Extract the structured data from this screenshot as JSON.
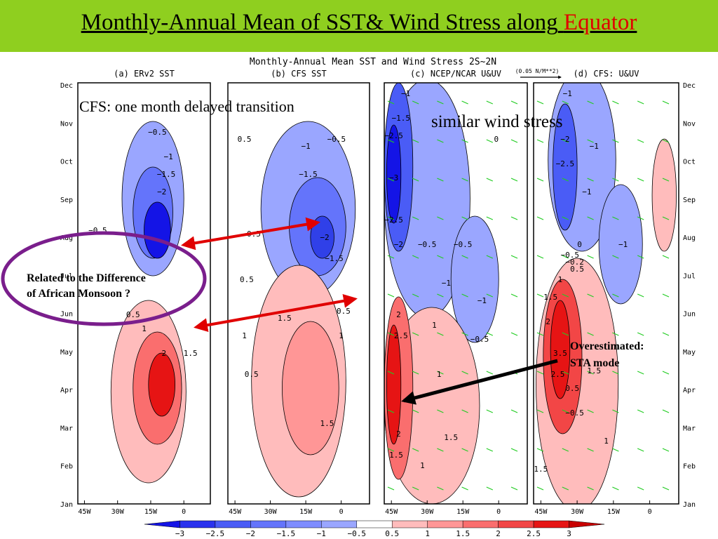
{
  "header": {
    "title_main": "Monthly-Annual Mean of SST& Wind Stress along",
    "title_highlight": "Equator"
  },
  "annotations": {
    "cfs_delay": "CFS: one month delayed transition",
    "similar_wind": "similar wind stress",
    "african_line1": "Related to the Difference",
    "african_line2": "of African Monsoon ?",
    "sta_line1": "Overestimated:",
    "sta_line2": "STA mode"
  },
  "colors": {
    "title_bar": "#8fcf1f",
    "negative_deep": "#1414e6",
    "negative_light": "#9aa6ff",
    "positive_deep": "#e61414",
    "positive_light": "#ffbcbc",
    "arrows_red": "#e00000",
    "arrows_black": "#000000",
    "ellipse": "#7a1e8c",
    "wind_vectors": "#22cc22"
  },
  "chart_data": {
    "type": "heatmap",
    "title": "Monthly-Annual Mean SST and Wind Stress 2S~2N",
    "vector_reference": "(0.05 N/M**2)",
    "y_ticks": [
      "Dec",
      "Nov",
      "Oct",
      "Sep",
      "Aug",
      "Jul",
      "Jun",
      "May",
      "Apr",
      "Mar",
      "Feb",
      "Jan"
    ],
    "x_ticks": [
      "45W",
      "30W",
      "15W",
      "0"
    ],
    "panels": [
      {
        "name": "(a) ERv2 SST",
        "labels": [
          {
            "text": "−0.5",
            "lon": -12,
            "month": 10.6
          },
          {
            "text": "−1",
            "lon": -7,
            "month": 9.9
          },
          {
            "text": "−1.5",
            "lon": -8,
            "month": 9.4
          },
          {
            "text": "−2",
            "lon": -10,
            "month": 8.9
          },
          {
            "text": "−0.5",
            "lon": -39,
            "month": 7.8
          },
          {
            "text": "0.5",
            "lon": -23,
            "month": 5.4
          },
          {
            "text": "1",
            "lon": -18,
            "month": 5.0
          },
          {
            "text": "1.5",
            "lon": 3,
            "month": 4.3
          },
          {
            "text": "2",
            "lon": -9,
            "month": 4.3
          }
        ]
      },
      {
        "name": "(b) CFS SST",
        "labels": [
          {
            "text": "0.5",
            "lon": -41,
            "month": 10.4
          },
          {
            "text": "−0.5",
            "lon": -2,
            "month": 10.4
          },
          {
            "text": "−1",
            "lon": -15,
            "month": 10.2
          },
          {
            "text": "−1.5",
            "lon": -14,
            "month": 9.4
          },
          {
            "text": "−0.5",
            "lon": -38,
            "month": 7.7
          },
          {
            "text": "−2",
            "lon": -7,
            "month": 7.6
          },
          {
            "text": "−1.5",
            "lon": -3,
            "month": 7.0
          },
          {
            "text": "0.5",
            "lon": -40,
            "month": 6.4
          },
          {
            "text": "1.5",
            "lon": -24,
            "month": 5.3
          },
          {
            "text": "0.5",
            "lon": 1,
            "month": 5.5
          },
          {
            "text": "1",
            "lon": -41,
            "month": 4.8
          },
          {
            "text": "1",
            "lon": 0,
            "month": 4.8
          },
          {
            "text": "0.5",
            "lon": -38,
            "month": 3.7
          },
          {
            "text": "1.5",
            "lon": -6,
            "month": 2.3
          }
        ]
      },
      {
        "name": "(c) NCEP/NCAR U&UV",
        "labels": [
          {
            "text": "−1",
            "lon": -39,
            "month": 11.7
          },
          {
            "text": "−1.5",
            "lon": -41,
            "month": 11.0
          },
          {
            "text": "−2.5",
            "lon": -44,
            "month": 10.5
          },
          {
            "text": "0",
            "lon": -1,
            "month": 10.4
          },
          {
            "text": "−3",
            "lon": -44,
            "month": 9.3
          },
          {
            "text": "−2.5",
            "lon": -44,
            "month": 8.1
          },
          {
            "text": "−2",
            "lon": -42,
            "month": 7.4
          },
          {
            "text": "−0.5",
            "lon": -30,
            "month": 7.4
          },
          {
            "text": "−0.5",
            "lon": -15,
            "month": 7.4
          },
          {
            "text": "−1",
            "lon": -22,
            "month": 6.3
          },
          {
            "text": "−1",
            "lon": -7,
            "month": 5.8
          },
          {
            "text": "−0.5",
            "lon": -8,
            "month": 4.7
          },
          {
            "text": "2",
            "lon": -42,
            "month": 5.4
          },
          {
            "text": "2.5",
            "lon": -41,
            "month": 4.8
          },
          {
            "text": "1",
            "lon": -27,
            "month": 5.1
          },
          {
            "text": "1",
            "lon": -25,
            "month": 3.7
          },
          {
            "text": "1.5",
            "lon": -20,
            "month": 1.9
          },
          {
            "text": "2",
            "lon": -42,
            "month": 2.0
          },
          {
            "text": "1.5",
            "lon": -43,
            "month": 1.4
          },
          {
            "text": "1",
            "lon": -32,
            "month": 1.1
          }
        ]
      },
      {
        "name": "(d) CFS: U&UV",
        "labels": [
          {
            "text": "−1",
            "lon": -34,
            "month": 11.7
          },
          {
            "text": "−2",
            "lon": -35,
            "month": 10.4
          },
          {
            "text": "−1",
            "lon": -23,
            "month": 10.2
          },
          {
            "text": "−2.5",
            "lon": -35,
            "month": 9.7
          },
          {
            "text": "−1",
            "lon": -26,
            "month": 8.9
          },
          {
            "text": "0",
            "lon": -29,
            "month": 7.4
          },
          {
            "text": "−1",
            "lon": -11,
            "month": 7.4
          },
          {
            "text": "−0.5",
            "lon": -33,
            "month": 7.1
          },
          {
            "text": "−0.2",
            "lon": -31,
            "month": 6.9
          },
          {
            "text": "0.5",
            "lon": -30,
            "month": 6.7
          },
          {
            "text": "1",
            "lon": -37,
            "month": 6.4
          },
          {
            "text": "1.5",
            "lon": -41,
            "month": 5.9
          },
          {
            "text": "2",
            "lon": -42,
            "month": 5.2
          },
          {
            "text": "3.5",
            "lon": -37,
            "month": 4.3
          },
          {
            "text": "2.5",
            "lon": -38,
            "month": 3.7
          },
          {
            "text": "1.5",
            "lon": -23,
            "month": 3.8
          },
          {
            "text": "0.5",
            "lon": -32,
            "month": 3.3
          },
          {
            "text": "−0.5",
            "lon": -31,
            "month": 2.6
          },
          {
            "text": "1",
            "lon": -18,
            "month": 1.8
          },
          {
            "text": "1.5",
            "lon": -45,
            "month": 1.0
          }
        ]
      }
    ],
    "colorbar": {
      "ticks": [
        "−3",
        "−2.5",
        "−2",
        "−1.5",
        "−1",
        "−0.5",
        "0.5",
        "1",
        "1.5",
        "2",
        "2.5",
        "3"
      ],
      "colors": [
        "#1414e6",
        "#2a32ee",
        "#4a5cf6",
        "#6474fb",
        "#7e8cff",
        "#9aa6ff",
        "#ffffff",
        "#ffbcbc",
        "#ff9696",
        "#fa6e6e",
        "#f24646",
        "#e61414",
        "#c80000"
      ]
    }
  }
}
